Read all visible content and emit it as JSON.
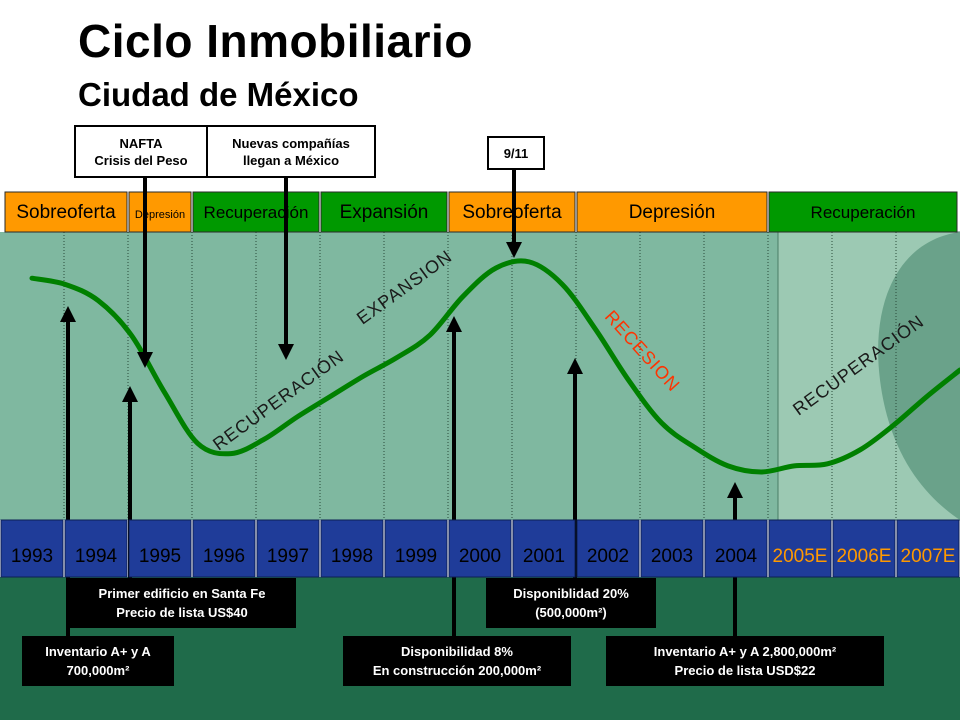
{
  "title": "Ciclo Inmobiliario",
  "subtitle": "Ciudad de México",
  "chart_data": {
    "type": "line",
    "title": "Ciclo Inmobiliario",
    "subtitle": "Ciudad de México",
    "years": [
      "1993",
      "1994",
      "1995",
      "1996",
      "1997",
      "1998",
      "1999",
      "2000",
      "2001",
      "2002",
      "2003",
      "2004",
      "2005E",
      "2006E",
      "2007E"
    ],
    "estimated_years": [
      "2005E",
      "2006E",
      "2007E"
    ],
    "phases": [
      {
        "label": "Sobreoferta",
        "color": "#ff9900"
      },
      {
        "label": "Depresión",
        "color": "#ff9900"
      },
      {
        "label": "Recuperación",
        "color": "#009900"
      },
      {
        "label": "Expansión",
        "color": "#009900"
      },
      {
        "label": "Sobreoferta",
        "color": "#ff9900"
      },
      {
        "label": "Depresión",
        "color": "#ff9900"
      },
      {
        "label": "Recuperación",
        "color": "#009900"
      }
    ],
    "curve_labels": [
      "RECUPERACIÓN",
      "EXPANSION",
      "RECESION",
      "RECUPERACIÓN"
    ],
    "series": [
      {
        "color": "#008000",
        "x": [
          1993,
          1993.5,
          1994,
          1994.5,
          1995,
          1995.5,
          1996,
          1996.5,
          1997,
          1997.5,
          1998,
          1998.5,
          1999,
          1999.5,
          2000,
          2000.5,
          2001,
          2001.5,
          2002,
          2002.5,
          2003,
          2003.5,
          2004,
          2004.5,
          2005,
          2005.5,
          2006,
          2006.5,
          2007
        ],
        "y": [
          9.5,
          9.2,
          8.4,
          6.7,
          3.9,
          1.4,
          0.9,
          1.6,
          2.7,
          3.7,
          4.7,
          5.6,
          6.7,
          8.6,
          10.0,
          10.3,
          9.2,
          7.0,
          4.5,
          2.4,
          1.2,
          0.3,
          0.0,
          0.3,
          0.4,
          1.1,
          2.3,
          3.7,
          5.0
        ]
      }
    ],
    "top_events": [
      {
        "label_lines": [
          "NAFTA",
          "Crisis del Peso"
        ]
      },
      {
        "label_lines": [
          "Nuevas compañías",
          "llegan a México"
        ]
      },
      {
        "label_lines": [
          "9/11"
        ]
      }
    ],
    "bottom_events": [
      {
        "label_lines": [
          "Primer edificio en Santa Fe",
          "Precio de lista US$40"
        ]
      },
      {
        "label_lines": [
          "Inventario A+ y A",
          "700,000m²"
        ]
      },
      {
        "label_lines": [
          "Disponibilidad 8%",
          "En construcción 200,000m²"
        ]
      },
      {
        "label_lines": [
          "Disponiblidad 20%",
          "(500,000m²)"
        ]
      },
      {
        "label_lines": [
          "Inventario A+ y A 2,800,000m²",
          "Precio de lista USD$22"
        ]
      }
    ],
    "colors": {
      "curve": "#008000",
      "recession_label": "#ff3300",
      "estimate_year": "#ff9900",
      "year_bar": "#1f3c99",
      "panel_light": "#7fb8a0",
      "panel_dark": "#1f6b4a",
      "navy": "#1e3a8a"
    }
  }
}
